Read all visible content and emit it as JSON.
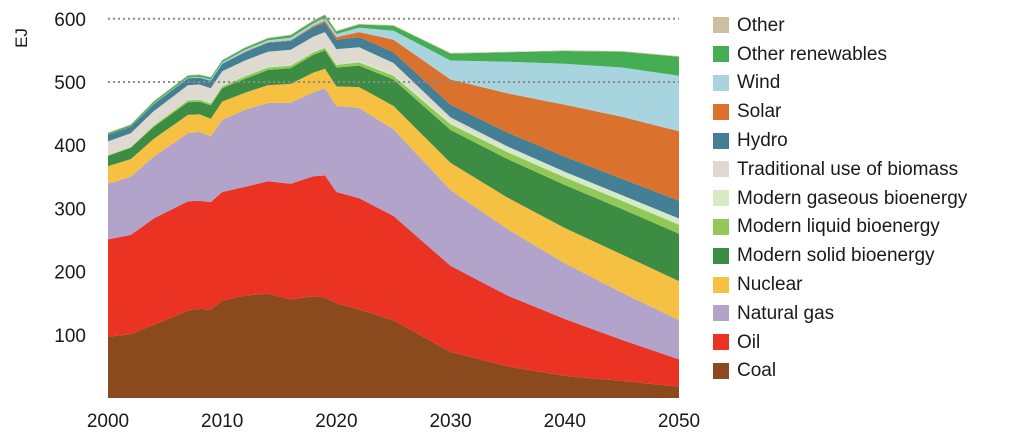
{
  "chart_data": {
    "type": "area",
    "stacked": true,
    "title": "",
    "xlabel": "",
    "ylabel": "EJ",
    "xlim": [
      2000,
      2050
    ],
    "ylim": [
      0,
      620
    ],
    "x_ticks": [
      "2000",
      "2010",
      "2020",
      "2030",
      "2040",
      "2050"
    ],
    "y_ticks": [
      "100",
      "200",
      "300",
      "400",
      "500",
      "600"
    ],
    "reference_lines": [
      500,
      600
    ],
    "grid": false,
    "legend_position": "right",
    "x": [
      2000,
      2002,
      2004,
      2007,
      2008,
      2009,
      2010,
      2012,
      2014,
      2016,
      2018,
      2019,
      2020,
      2022,
      2025,
      2030,
      2035,
      2040,
      2045,
      2050
    ],
    "series": [
      {
        "name": "Coal",
        "color": "#8b4a1e",
        "values": [
          97,
          101,
          116,
          138,
          141,
          140,
          154,
          162,
          165,
          156,
          161,
          159,
          150,
          140,
          123,
          73,
          50,
          35,
          27,
          18
        ]
      },
      {
        "name": "Oil",
        "color": "#ea3323",
        "values": [
          154,
          157,
          168,
          173,
          171,
          170,
          172,
          172,
          178,
          183,
          190,
          193,
          176,
          176,
          165,
          136,
          112,
          90,
          65,
          43
        ]
      },
      {
        "name": "Natural gas",
        "color": "#b1a3c9",
        "values": [
          88,
          92,
          98,
          108,
          109,
          104,
          114,
          122,
          124,
          128,
          133,
          138,
          136,
          143,
          137,
          120,
          105,
          88,
          75,
          62
        ]
      },
      {
        "name": "Nuclear",
        "color": "#f6c142",
        "values": [
          28,
          28,
          28,
          29,
          28,
          28,
          29,
          27,
          28,
          30,
          31,
          31,
          31,
          33,
          37,
          43,
          50,
          56,
          60,
          62
        ]
      },
      {
        "name": "Modern solid bioenergy",
        "color": "#3d8c44",
        "values": [
          16,
          18,
          19,
          20,
          20,
          21,
          21,
          22,
          24,
          25,
          28,
          29,
          30,
          34,
          42,
          52,
          61,
          68,
          72,
          75
        ]
      },
      {
        "name": "Modern liquid bioenergy",
        "color": "#92c857",
        "values": [
          1,
          1,
          2,
          3,
          3,
          3,
          3,
          4,
          4,
          4,
          4,
          4,
          4,
          5,
          6,
          9,
          11,
          12,
          13,
          14
        ]
      },
      {
        "name": "Modern gaseous bioenergy",
        "color": "#d4ebc6",
        "values": [
          0,
          0,
          0,
          1,
          1,
          1,
          1,
          1,
          1,
          1,
          1,
          1,
          1,
          2,
          3,
          5,
          7,
          8,
          9,
          10
        ]
      },
      {
        "name": "Traditional use of biomass",
        "color": "#dedad0",
        "values": [
          22,
          22,
          23,
          23,
          23,
          23,
          23,
          24,
          24,
          24,
          24,
          24,
          24,
          22,
          17,
          6,
          2,
          1,
          0,
          0
        ]
      },
      {
        "name": "Hydro",
        "color": "#447f96",
        "values": [
          10,
          10,
          11,
          11,
          11,
          12,
          12,
          13,
          14,
          14,
          15,
          15,
          15,
          16,
          17,
          20,
          22,
          24,
          26,
          28
        ]
      },
      {
        "name": "Solar",
        "color": "#da712d",
        "values": [
          0,
          0,
          0,
          0,
          0,
          0,
          0,
          1,
          1,
          1,
          2,
          3,
          4,
          8,
          20,
          40,
          62,
          82,
          98,
          110
        ]
      },
      {
        "name": "Wind",
        "color": "#a7d4df",
        "values": [
          0,
          0,
          1,
          1,
          1,
          2,
          2,
          3,
          3,
          4,
          4,
          5,
          5,
          7,
          14,
          30,
          50,
          65,
          78,
          88
        ]
      },
      {
        "name": "Other renewables",
        "color": "#45ad52",
        "values": [
          3,
          3,
          3,
          3,
          3,
          3,
          3,
          3,
          3,
          4,
          4,
          4,
          4,
          5,
          8,
          11,
          15,
          20,
          25,
          30
        ]
      },
      {
        "name": "Other",
        "color": "#cbbf9f",
        "values": [
          1,
          1,
          1,
          1,
          1,
          1,
          1,
          1,
          1,
          1,
          1,
          1,
          1,
          1,
          1,
          1,
          1,
          1,
          1,
          1
        ]
      }
    ]
  }
}
